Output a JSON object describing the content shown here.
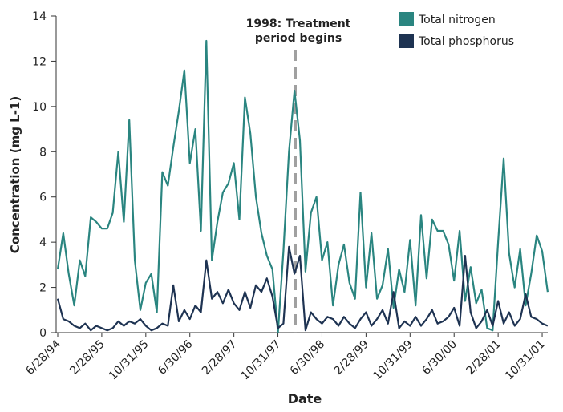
{
  "chart_data": {
    "type": "line",
    "x_label": "Date",
    "y_label": "Concentration (mg L-1)",
    "annotation": [
      "1998: Treatment",
      "period begins"
    ],
    "categories": [
      "6/28/94",
      null,
      null,
      null,
      null,
      null,
      null,
      null,
      "2/28/95",
      null,
      null,
      null,
      null,
      null,
      null,
      null,
      "10/31/95",
      null,
      null,
      null,
      null,
      null,
      null,
      null,
      "6/30/96",
      null,
      null,
      null,
      null,
      null,
      null,
      null,
      "2/28/97",
      null,
      null,
      null,
      null,
      null,
      null,
      null,
      "10/31/97",
      null,
      null,
      null,
      null,
      null,
      null,
      null,
      "6/30/98",
      null,
      null,
      null,
      null,
      null,
      null,
      null,
      "2/28/99",
      null,
      null,
      null,
      null,
      null,
      null,
      null,
      "10/31/99",
      null,
      null,
      null,
      null,
      null,
      null,
      null,
      "6/30/00",
      null,
      null,
      null,
      null,
      null,
      null,
      null,
      "2/28/01",
      null,
      null,
      null,
      null,
      null,
      null,
      null,
      "10/31/01",
      null
    ],
    "series": [
      {
        "name": "Total nitrogen",
        "color": "#2a8580",
        "values": [
          2.8,
          4.4,
          2.6,
          1.2,
          3.2,
          2.5,
          5.1,
          4.9,
          4.6,
          4.6,
          5.3,
          8.0,
          4.9,
          9.4,
          3.2,
          1.0,
          2.2,
          2.6,
          0.9,
          7.1,
          6.5,
          8.2,
          9.8,
          11.6,
          7.5,
          9.0,
          4.5,
          12.9,
          3.2,
          4.9,
          6.2,
          6.6,
          7.5,
          5.0,
          10.4,
          8.8,
          6.0,
          4.4,
          3.4,
          2.8,
          0,
          3.6,
          8.0,
          10.7,
          8.5,
          2.7,
          5.3,
          6.0,
          3.2,
          4.0,
          1.2,
          3.0,
          3.9,
          2.2,
          1.5,
          6.2,
          2.0,
          4.4,
          1.5,
          2.1,
          3.7,
          1.1,
          2.8,
          1.8,
          4.1,
          1.2,
          5.2,
          2.4,
          5.0,
          4.5,
          4.5,
          3.9,
          2.3,
          4.5,
          1.4,
          2.9,
          1.3,
          1.9,
          0.2,
          0.1,
          4.0,
          7.7,
          3.5,
          2.0,
          3.7,
          1.2,
          2.6,
          4.3,
          3.6,
          1.8
        ]
      },
      {
        "name": "Total phosphorus",
        "color": "#1e3352",
        "values": [
          1.5,
          0.6,
          0.5,
          0.3,
          0.2,
          0.4,
          0.1,
          0.3,
          0.2,
          0.1,
          0.2,
          0.5,
          0.3,
          0.5,
          0.4,
          0.6,
          0.3,
          0.1,
          0.2,
          0.4,
          0.3,
          2.1,
          0.5,
          1.0,
          0.6,
          1.2,
          0.9,
          3.2,
          1.5,
          1.8,
          1.3,
          1.9,
          1.3,
          1.0,
          1.8,
          1.1,
          2.1,
          1.8,
          2.4,
          1.6,
          0.2,
          0.4,
          3.8,
          2.6,
          3.4,
          0.1,
          0.9,
          0.6,
          0.4,
          0.7,
          0.6,
          0.3,
          0.7,
          0.4,
          0.2,
          0.6,
          0.9,
          0.3,
          0.6,
          1.0,
          0.4,
          1.8,
          0.2,
          0.5,
          0.3,
          0.7,
          0.3,
          0.6,
          1.0,
          0.4,
          0.5,
          0.7,
          1.1,
          0.3,
          3.4,
          0.9,
          0.2,
          0.5,
          1.0,
          0.3,
          1.4,
          0.4,
          0.9,
          0.3,
          0.6,
          1.7,
          0.7,
          0.6,
          0.4,
          0.3
        ]
      }
    ],
    "ylim": [
      0,
      14
    ],
    "yticks": [
      0,
      2,
      4,
      6,
      8,
      10,
      12,
      14
    ]
  }
}
